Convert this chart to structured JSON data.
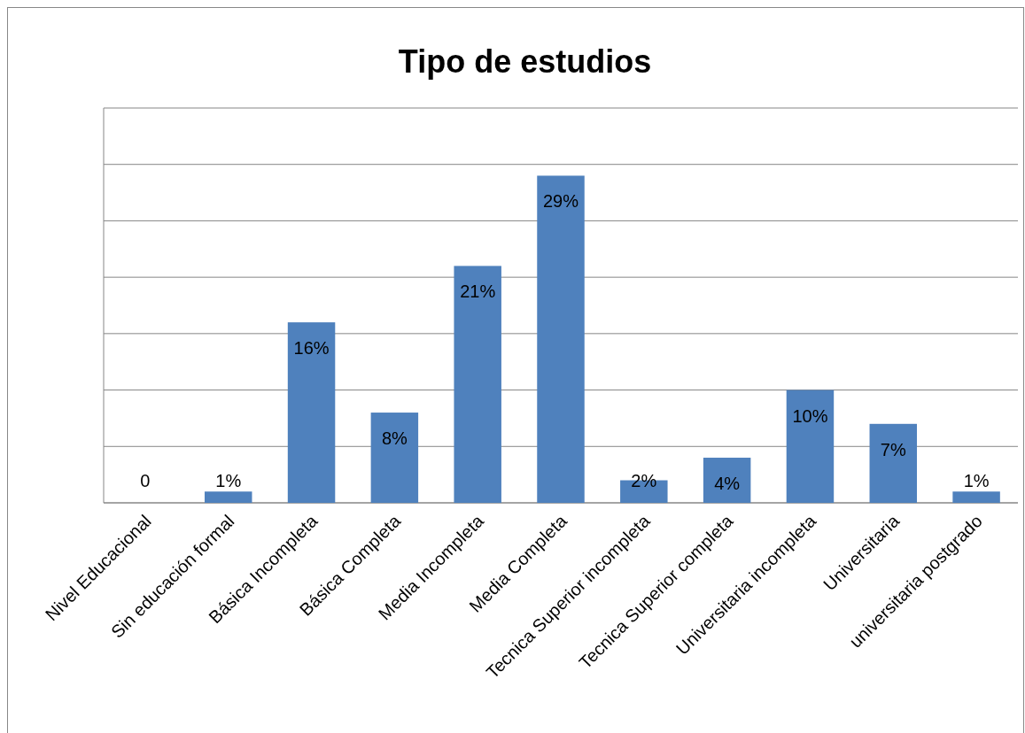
{
  "chart_data": {
    "type": "bar",
    "title": "Tipo de estudios",
    "categories": [
      "Nivel Educacional",
      "Sin educación formal",
      "Básica Incompleta",
      "Básica Completa",
      "Media Incompleta",
      "Media Completa",
      "Tecnica Superior incompleta",
      "Tecnica Superior completa",
      "Universitaria incompleta",
      "Universitaria",
      "universitaria postgrado"
    ],
    "values": [
      0,
      1,
      16,
      8,
      21,
      29,
      2,
      4,
      10,
      7,
      1
    ],
    "value_labels": [
      "0",
      "1%",
      "16%",
      "8%",
      "21%",
      "29%",
      "2%",
      "4%",
      "10%",
      "7%",
      "1%"
    ],
    "color": "#4f81bd",
    "ylim": [
      0,
      35
    ],
    "yticks": [
      {
        "value": 0,
        "label": null
      },
      {
        "value": 5,
        "label": null
      },
      {
        "value": 10,
        "label": null
      },
      {
        "value": 15,
        "label": null
      },
      {
        "value": 20,
        "label": null
      },
      {
        "value": 25,
        "label": null
      },
      {
        "value": 30,
        "label": null
      },
      {
        "value": 35,
        "label": null
      }
    ],
    "grid": "y",
    "tick_labels": "x"
  }
}
